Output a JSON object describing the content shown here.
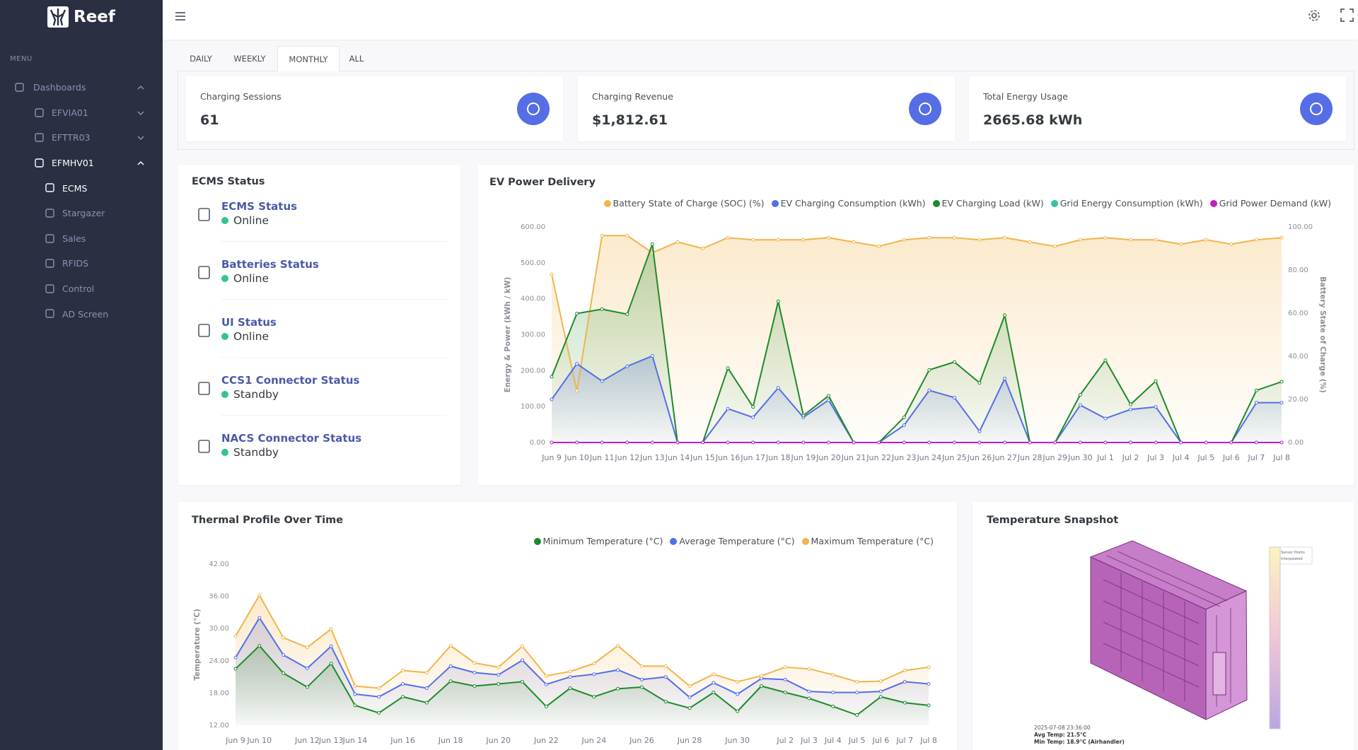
{
  "sidebar": {
    "brand": "Reef",
    "menu_label": "MENU",
    "items": [
      {
        "label": "Dashboards",
        "level": 0,
        "expanded": true,
        "active": false
      },
      {
        "label": "EFVIA01",
        "level": 1,
        "expanded": false,
        "active": false
      },
      {
        "label": "EFTTR03",
        "level": 1,
        "expanded": false,
        "active": false
      },
      {
        "label": "EFMHV01",
        "level": 1,
        "expanded": true,
        "active": true
      },
      {
        "label": "ECMS",
        "level": 2,
        "active": true
      },
      {
        "label": "Stargazer",
        "level": 2,
        "active": false
      },
      {
        "label": "Sales",
        "level": 2,
        "active": false
      },
      {
        "label": "RFIDS",
        "level": 2,
        "active": false
      },
      {
        "label": "Control",
        "level": 2,
        "active": false
      },
      {
        "label": "AD Screen",
        "level": 2,
        "active": false
      }
    ]
  },
  "tabs": [
    "DAILY",
    "WEEKLY",
    "MONTHLY",
    "ALL"
  ],
  "active_tab": 2,
  "kpis": [
    {
      "label": "Charging Sessions",
      "value": "61"
    },
    {
      "label": "Charging Revenue",
      "value": "$1,812.61"
    },
    {
      "label": "Total Energy Usage",
      "value": "2665.68 kWh"
    }
  ],
  "ecms_status": {
    "title": "ECMS Status",
    "items": [
      {
        "name": "ECMS Status",
        "status": "Online"
      },
      {
        "name": "Batteries Status",
        "status": "Online"
      },
      {
        "name": "UI Status",
        "status": "Online"
      },
      {
        "name": "CCS1 Connector Status",
        "status": "Standby"
      },
      {
        "name": "NACS Connector Status",
        "status": "Standby"
      }
    ]
  },
  "chart_data": [
    {
      "type": "line",
      "title": "EV Power Delivery",
      "y_label": "Energy & Power (kWh / kW)",
      "y2_label": "Battery State of Charge (%)",
      "legend": "top-right",
      "grid": false,
      "fill_area": true,
      "categories": [
        "Jun 9",
        "Jun 10",
        "Jun 11",
        "Jun 12",
        "Jun 13",
        "Jun 14",
        "Jun 15",
        "Jun 16",
        "Jun 17",
        "Jun 18",
        "Jun 19",
        "Jun 20",
        "Jun 21",
        "Jun 22",
        "Jun 23",
        "Jun 24",
        "Jun 25",
        "Jun 26",
        "Jun 27",
        "Jun 28",
        "Jun 29",
        "Jun 30",
        "Jul 1",
        "Jul 2",
        "Jul 3",
        "Jul 4",
        "Jul 5",
        "Jul 6",
        "Jul 7",
        "Jul 8"
      ],
      "ylim": [
        0,
        600
      ],
      "yticks": [
        {
          "value": 0,
          "label": "0.00"
        },
        {
          "value": 100,
          "label": "100.00"
        },
        {
          "value": 200,
          "label": "200.00"
        },
        {
          "value": 300,
          "label": "300.00"
        },
        {
          "value": 400,
          "label": "400.00"
        },
        {
          "value": 500,
          "label": "500.00"
        },
        {
          "value": 600,
          "label": "600.00"
        }
      ],
      "y2lim": [
        0,
        100
      ],
      "y2ticks": [
        {
          "value": 0,
          "label": "0.00"
        },
        {
          "value": 20,
          "label": "20.00"
        },
        {
          "value": 40,
          "label": "40.00"
        },
        {
          "value": 60,
          "label": "60.00"
        },
        {
          "value": 80,
          "label": "80.00"
        },
        {
          "value": 100,
          "label": "100.00"
        }
      ],
      "series": [
        {
          "name": "Battery State of Charge (SOC) (%)",
          "color": "#f1b44c",
          "axis": "y2",
          "values": [
            78,
            24,
            96,
            96,
            88,
            93,
            90,
            95,
            94,
            94,
            94,
            95,
            93,
            91,
            94,
            95,
            95,
            94,
            95,
            93,
            91,
            94,
            95,
            94,
            94,
            92,
            94,
            92,
            94,
            95
          ]
        },
        {
          "name": "EV Charging Consumption (kWh)",
          "color": "#556ee6",
          "values": [
            120,
            219,
            171,
            212,
            241,
            0,
            0,
            94,
            70,
            152,
            70,
            118,
            0,
            0,
            48,
            145,
            125,
            31,
            178,
            0,
            0,
            104,
            67,
            92,
            99,
            0,
            0,
            0,
            111,
            111
          ]
        },
        {
          "name": "EV Charging Load (kW)",
          "color": "#1e8a2a",
          "values": [
            183,
            359,
            371,
            357,
            552,
            0,
            0,
            207,
            99,
            393,
            75,
            130,
            0,
            0,
            70,
            202,
            224,
            166,
            354,
            0,
            0,
            133,
            229,
            106,
            171,
            0,
            0,
            0,
            145,
            169
          ]
        },
        {
          "name": "Grid Energy Consumption (kWh)",
          "color": "#34c3a0",
          "values": [
            0,
            0,
            0,
            0,
            0,
            0,
            0,
            0,
            0,
            0,
            0,
            0,
            0,
            0,
            0,
            0,
            0,
            0,
            0,
            0,
            0,
            0,
            0,
            0,
            0,
            0,
            0,
            0,
            0,
            0
          ]
        },
        {
          "name": "Grid Power Demand (kW)",
          "color": "#c41cc4",
          "values": [
            0,
            0,
            0,
            0,
            0,
            0,
            0,
            0,
            0,
            0,
            0,
            0,
            0,
            0,
            0,
            0,
            0,
            0,
            0,
            0,
            0,
            0,
            0,
            0,
            0,
            0,
            0,
            0,
            0,
            0
          ]
        }
      ]
    },
    {
      "type": "line",
      "title": "Thermal Profile Over Time",
      "y_label": "Temperature (°C)",
      "legend": "top-right",
      "grid": false,
      "fill_area": true,
      "categories": [
        "Jun 9",
        "Jun 10",
        null,
        "Jun 12",
        "Jun 13",
        "Jun 14",
        null,
        "Jun 16",
        null,
        "Jun 18",
        null,
        "Jun 20",
        null,
        "Jun 22",
        null,
        "Jun 24",
        null,
        "Jun 26",
        null,
        "Jun 28",
        null,
        "Jun 30",
        null,
        "Jul 2",
        "Jul 3",
        "Jul 4",
        "Jul 5",
        "Jul 6",
        "Jul 7",
        "Jul 8"
      ],
      "ylim": [
        12,
        42
      ],
      "yticks": [
        {
          "value": 12,
          "label": "12.00"
        },
        {
          "value": 18,
          "label": "18.00"
        },
        {
          "value": 24,
          "label": "24.00"
        },
        {
          "value": 30,
          "label": "30.00"
        },
        {
          "value": 36,
          "label": "36.00"
        },
        {
          "value": 42,
          "label": "42.00"
        }
      ],
      "series": [
        {
          "name": "Minimum Temperature (°C)",
          "color": "#1e8a2a",
          "values": [
            22.5,
            26.8,
            21.7,
            19.1,
            23.5,
            15.7,
            14.3,
            17.3,
            16.2,
            20.2,
            19.3,
            19.7,
            20.1,
            15.5,
            18.9,
            17.3,
            18.8,
            19.1,
            16.4,
            15.2,
            18.1,
            14.6,
            19.3,
            18.1,
            17.0,
            15.5,
            13.9,
            17.3,
            16.2,
            15.7
          ]
        },
        {
          "name": "Average Temperature (°C)",
          "color": "#556ee6",
          "values": [
            24.6,
            32.0,
            25.1,
            22.6,
            26.7,
            17.8,
            17.3,
            19.7,
            18.9,
            23.0,
            21.8,
            21.4,
            24.1,
            19.6,
            21.0,
            21.5,
            22.3,
            20.5,
            21.0,
            17.2,
            19.9,
            17.8,
            20.7,
            20.5,
            18.3,
            18.1,
            18.1,
            18.3,
            20.1,
            19.7
          ]
        },
        {
          "name": "Maximum Temperature (°C)",
          "color": "#f1b44c",
          "values": [
            28.6,
            36.2,
            28.3,
            26.5,
            29.9,
            19.3,
            18.9,
            22.2,
            21.8,
            26.8,
            23.6,
            22.8,
            26.7,
            21.2,
            22.0,
            23.5,
            26.8,
            23.0,
            23.0,
            19.3,
            21.5,
            20.1,
            21.2,
            22.8,
            22.5,
            21.4,
            20.1,
            20.2,
            22.2,
            22.8
          ]
        }
      ]
    }
  ],
  "snapshot": {
    "title": "Temperature Snapshot",
    "legend": [
      "Sensor Points",
      "Interpolated"
    ],
    "caption": [
      "2025-07-08 23:36:00",
      "Avg Temp: 21.5°C",
      "Min Temp: 18.9°C (Airhandler)"
    ]
  }
}
